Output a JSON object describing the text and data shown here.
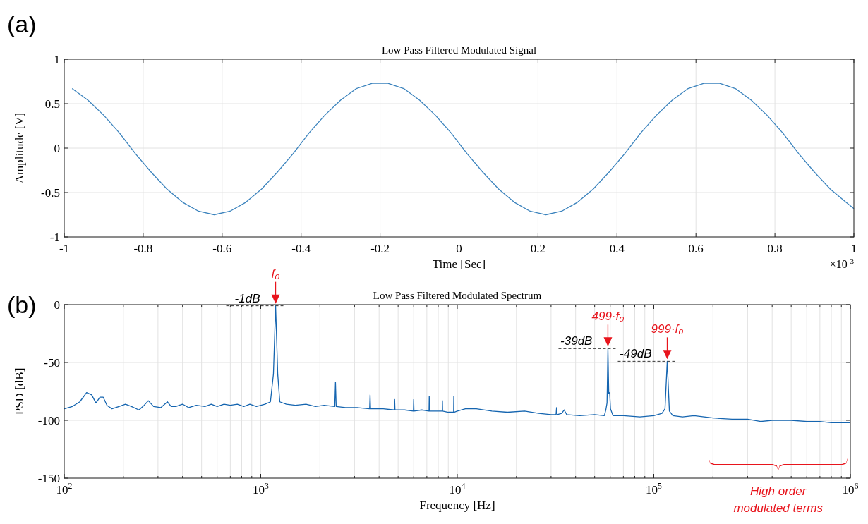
{
  "chart_data": [
    {
      "type": "line",
      "title": "Low Pass Filtered Modulated Signal",
      "xlabel": "Time [Sec]",
      "ylabel": "Amplitude [V]",
      "xlim": [
        -1,
        1
      ],
      "xticks": [
        -1,
        -0.8,
        -0.6,
        -0.4,
        -0.2,
        0,
        0.2,
        0.4,
        0.6,
        0.8,
        1
      ],
      "ylim": [
        -1,
        1
      ],
      "yticks": [
        -1,
        -0.5,
        0,
        0.5,
        1
      ],
      "grid": true,
      "annotations": [
        "(a)",
        "×10$^{-3}$"
      ],
      "series": [
        {
          "color": "#3b83bd",
          "x": [
            -0.98,
            -0.94,
            -0.9,
            -0.86,
            -0.82,
            -0.78,
            -0.74,
            -0.7,
            -0.66,
            -0.62,
            -0.58,
            -0.54,
            -0.5,
            -0.46,
            -0.42,
            -0.38,
            -0.34,
            -0.3,
            -0.26,
            -0.22,
            -0.18,
            -0.14,
            -0.1,
            -0.06,
            -0.02,
            0.02,
            0.06,
            0.1,
            0.14,
            0.18,
            0.22,
            0.26,
            0.3,
            0.34,
            0.38,
            0.42,
            0.46,
            0.5,
            0.54,
            0.58,
            0.62,
            0.66,
            0.7,
            0.74,
            0.78,
            0.82,
            0.86,
            0.9,
            0.94,
            0.98,
            1.0
          ],
          "values": [
            0.67,
            0.54,
            0.37,
            0.17,
            -0.06,
            -0.27,
            -0.46,
            -0.61,
            -0.71,
            -0.75,
            -0.71,
            -0.61,
            -0.46,
            -0.27,
            -0.06,
            0.17,
            0.37,
            0.54,
            0.67,
            0.73,
            0.73,
            0.67,
            0.54,
            0.37,
            0.17,
            -0.06,
            -0.27,
            -0.46,
            -0.61,
            -0.71,
            -0.75,
            -0.71,
            -0.61,
            -0.46,
            -0.27,
            -0.06,
            0.17,
            0.37,
            0.54,
            0.67,
            0.73,
            0.73,
            0.67,
            0.54,
            0.37,
            0.17,
            -0.06,
            -0.27,
            -0.46,
            -0.61,
            -0.68
          ]
        }
      ]
    },
    {
      "type": "line",
      "title": "Low Pass Filtered Modulated Spectrum",
      "xlabel": "Frequency [Hz]",
      "ylabel": "PSD [dB]",
      "log": "x",
      "xlim": [
        100,
        1000000
      ],
      "xticks": [
        {
          "value": 100,
          "label": "10$^{2}$"
        },
        {
          "value": 200,
          "label": null
        },
        {
          "value": 300,
          "label": null
        },
        {
          "value": 400,
          "label": null
        },
        {
          "value": 500,
          "label": null
        },
        {
          "value": 600,
          "label": null
        },
        {
          "value": 700,
          "label": null
        },
        {
          "value": 800,
          "label": null
        },
        {
          "value": 900,
          "label": null
        },
        {
          "value": 1000,
          "label": "10$^{3}$"
        },
        {
          "value": 2000,
          "label": null
        },
        {
          "value": 3000,
          "label": null
        },
        {
          "value": 4000,
          "label": null
        },
        {
          "value": 5000,
          "label": null
        },
        {
          "value": 6000,
          "label": null
        },
        {
          "value": 7000,
          "label": null
        },
        {
          "value": 8000,
          "label": null
        },
        {
          "value": 9000,
          "label": null
        },
        {
          "value": 10000,
          "label": "10$^{4}$"
        },
        {
          "value": 20000,
          "label": null
        },
        {
          "value": 30000,
          "label": null
        },
        {
          "value": 40000,
          "label": null
        },
        {
          "value": 50000,
          "label": null
        },
        {
          "value": 60000,
          "label": null
        },
        {
          "value": 70000,
          "label": null
        },
        {
          "value": 80000,
          "label": null
        },
        {
          "value": 90000,
          "label": null
        },
        {
          "value": 100000,
          "label": "10$^{5}$"
        },
        {
          "value": 200000,
          "label": null
        },
        {
          "value": 300000,
          "label": null
        },
        {
          "value": 400000,
          "label": null
        },
        {
          "value": 500000,
          "label": null
        },
        {
          "value": 600000,
          "label": null
        },
        {
          "value": 700000,
          "label": null
        },
        {
          "value": 800000,
          "label": null
        },
        {
          "value": 900000,
          "label": null
        },
        {
          "value": 1000000,
          "label": "10$^{6}$"
        }
      ],
      "ylim": [
        -150,
        0
      ],
      "yticks": [
        -150,
        -100,
        -50,
        0
      ],
      "grid": true,
      "annotations": [
        "(b)",
        {
          "text": "-1dB",
          "x": 1190,
          "y": -1
        },
        {
          "text": "f₀",
          "x": 1190,
          "y": -1
        },
        {
          "text": "-39dB",
          "x": 58400,
          "y": -38
        },
        {
          "text": "499·f₀",
          "x": 58400,
          "y": -38
        },
        {
          "text": "-49dB",
          "x": 117000,
          "y": -49
        },
        {
          "text": "999·f₀",
          "x": 117000,
          "y": -49
        },
        "High order modulated terms"
      ],
      "series": [
        {
          "color": "#1565b0",
          "x": [
            100,
            110,
            120,
            130,
            138,
            145,
            152,
            158,
            165,
            175,
            190,
            205,
            220,
            240,
            255,
            268,
            285,
            310,
            335,
            350,
            370,
            400,
            430,
            470,
            520,
            560,
            600,
            650,
            700,
            760,
            820,
            880,
            950,
            1050,
            1120,
            1160,
            1190,
            1220,
            1250,
            1350,
            1500,
            1700,
            1900,
            2100,
            2380,
            2400,
            2420,
            2700,
            3100,
            3580,
            3600,
            3620,
            4200,
            4780,
            4800,
            4820,
            5400,
            5980,
            6000,
            6020,
            6600,
            7180,
            7200,
            7220,
            7800,
            8380,
            8400,
            8420,
            9000,
            9580,
            9600,
            9620,
            10000,
            11000,
            12500,
            15000,
            18000,
            22000,
            26000,
            30000,
            31800,
            32000,
            32200,
            34000,
            35000,
            36000,
            42000,
            50000,
            56000,
            57000,
            57800,
            58400,
            59000,
            59600,
            60200,
            62000,
            70000,
            85000,
            100000,
            110000,
            114000,
            117000,
            120000,
            125000,
            140000,
            160000,
            200000,
            250000,
            300000,
            350000,
            400000,
            500000,
            600000,
            700000,
            800000,
            1000000
          ],
          "values": [
            -90,
            -88,
            -84,
            -76,
            -78,
            -85,
            -80,
            -80,
            -87,
            -90,
            -88,
            -86,
            -88,
            -91,
            -87,
            -83,
            -88,
            -89,
            -84,
            -88,
            -88,
            -86,
            -89,
            -87,
            -88,
            -86,
            -88,
            -86,
            -87,
            -86,
            -88,
            -86,
            -88,
            -86,
            -84,
            -60,
            -1,
            -60,
            -84,
            -86,
            -87,
            -86,
            -88,
            -87,
            -88,
            -67,
            -88,
            -89,
            -89,
            -90,
            -78,
            -90,
            -90,
            -91,
            -82,
            -91,
            -91,
            -92,
            -82,
            -92,
            -91,
            -92,
            -79,
            -92,
            -92,
            -92,
            -83,
            -92,
            -93,
            -93,
            -79,
            -93,
            -92,
            -90,
            -90,
            -92,
            -93,
            -92,
            -94,
            -95,
            -95,
            -89,
            -95,
            -94,
            -91,
            -95,
            -96,
            -95,
            -96,
            -91,
            -85,
            -38,
            -77,
            -76,
            -90,
            -96,
            -96,
            -97,
            -96,
            -94,
            -90,
            -49,
            -92,
            -96,
            -97,
            -96,
            -98,
            -99,
            -99,
            -101,
            -100,
            -100,
            -101,
            -101,
            -102,
            -102
          ]
        }
      ]
    }
  ]
}
